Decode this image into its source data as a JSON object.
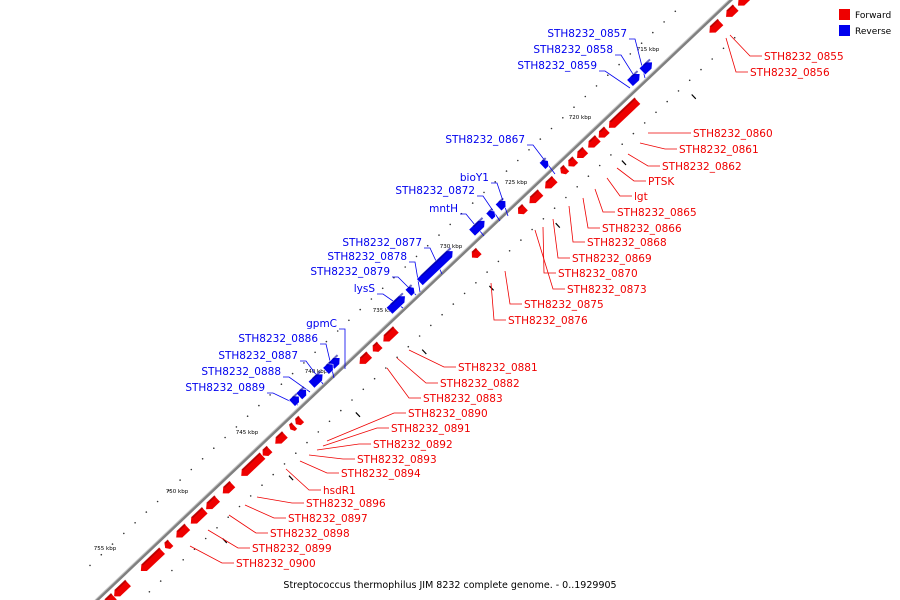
{
  "caption": "Streptococcus thermophilus JIM 8232 complete genome. - 0..1929905",
  "legend": [
    {
      "label": "Forward",
      "color": "#ee0000"
    },
    {
      "label": "Reverse",
      "color": "#0000ee"
    }
  ],
  "colors": {
    "forward": "#ee0000",
    "reverse": "#0000ee",
    "backbone": "#808080"
  },
  "ticks": [
    "715 kbp",
    "720 kbp",
    "725 kbp",
    "730 kbp",
    "735 kbp",
    "740 kbp",
    "745 kbp",
    "750 kbp",
    "755 kbp"
  ],
  "genes_forward": [
    "STH8232_0855",
    "STH8232_0856",
    "STH8232_0860",
    "STH8232_0861",
    "STH8232_0862",
    "PTSK",
    "lgt",
    "STH8232_0865",
    "STH8232_0866",
    "STH8232_0868",
    "STH8232_0869",
    "STH8232_0870",
    "STH8232_0873",
    "STH8232_0875",
    "STH8232_0876",
    "STH8232_0881",
    "STH8232_0882",
    "STH8232_0883",
    "STH8232_0890",
    "STH8232_0891",
    "STH8232_0892",
    "STH8232_0893",
    "STH8232_0894",
    "hsdR1",
    "STH8232_0896",
    "STH8232_0897",
    "STH8232_0898",
    "STH8232_0899",
    "STH8232_0900"
  ],
  "genes_reverse": [
    "STH8232_0857",
    "STH8232_0858",
    "STH8232_0859",
    "STH8232_0867",
    "bioY1",
    "STH8232_0872",
    "mntH",
    "STH8232_0877",
    "STH8232_0878",
    "STH8232_0879",
    "lysS",
    "gpmC",
    "STH8232_0886",
    "STH8232_0887",
    "STH8232_0888",
    "STH8232_0889"
  ]
}
